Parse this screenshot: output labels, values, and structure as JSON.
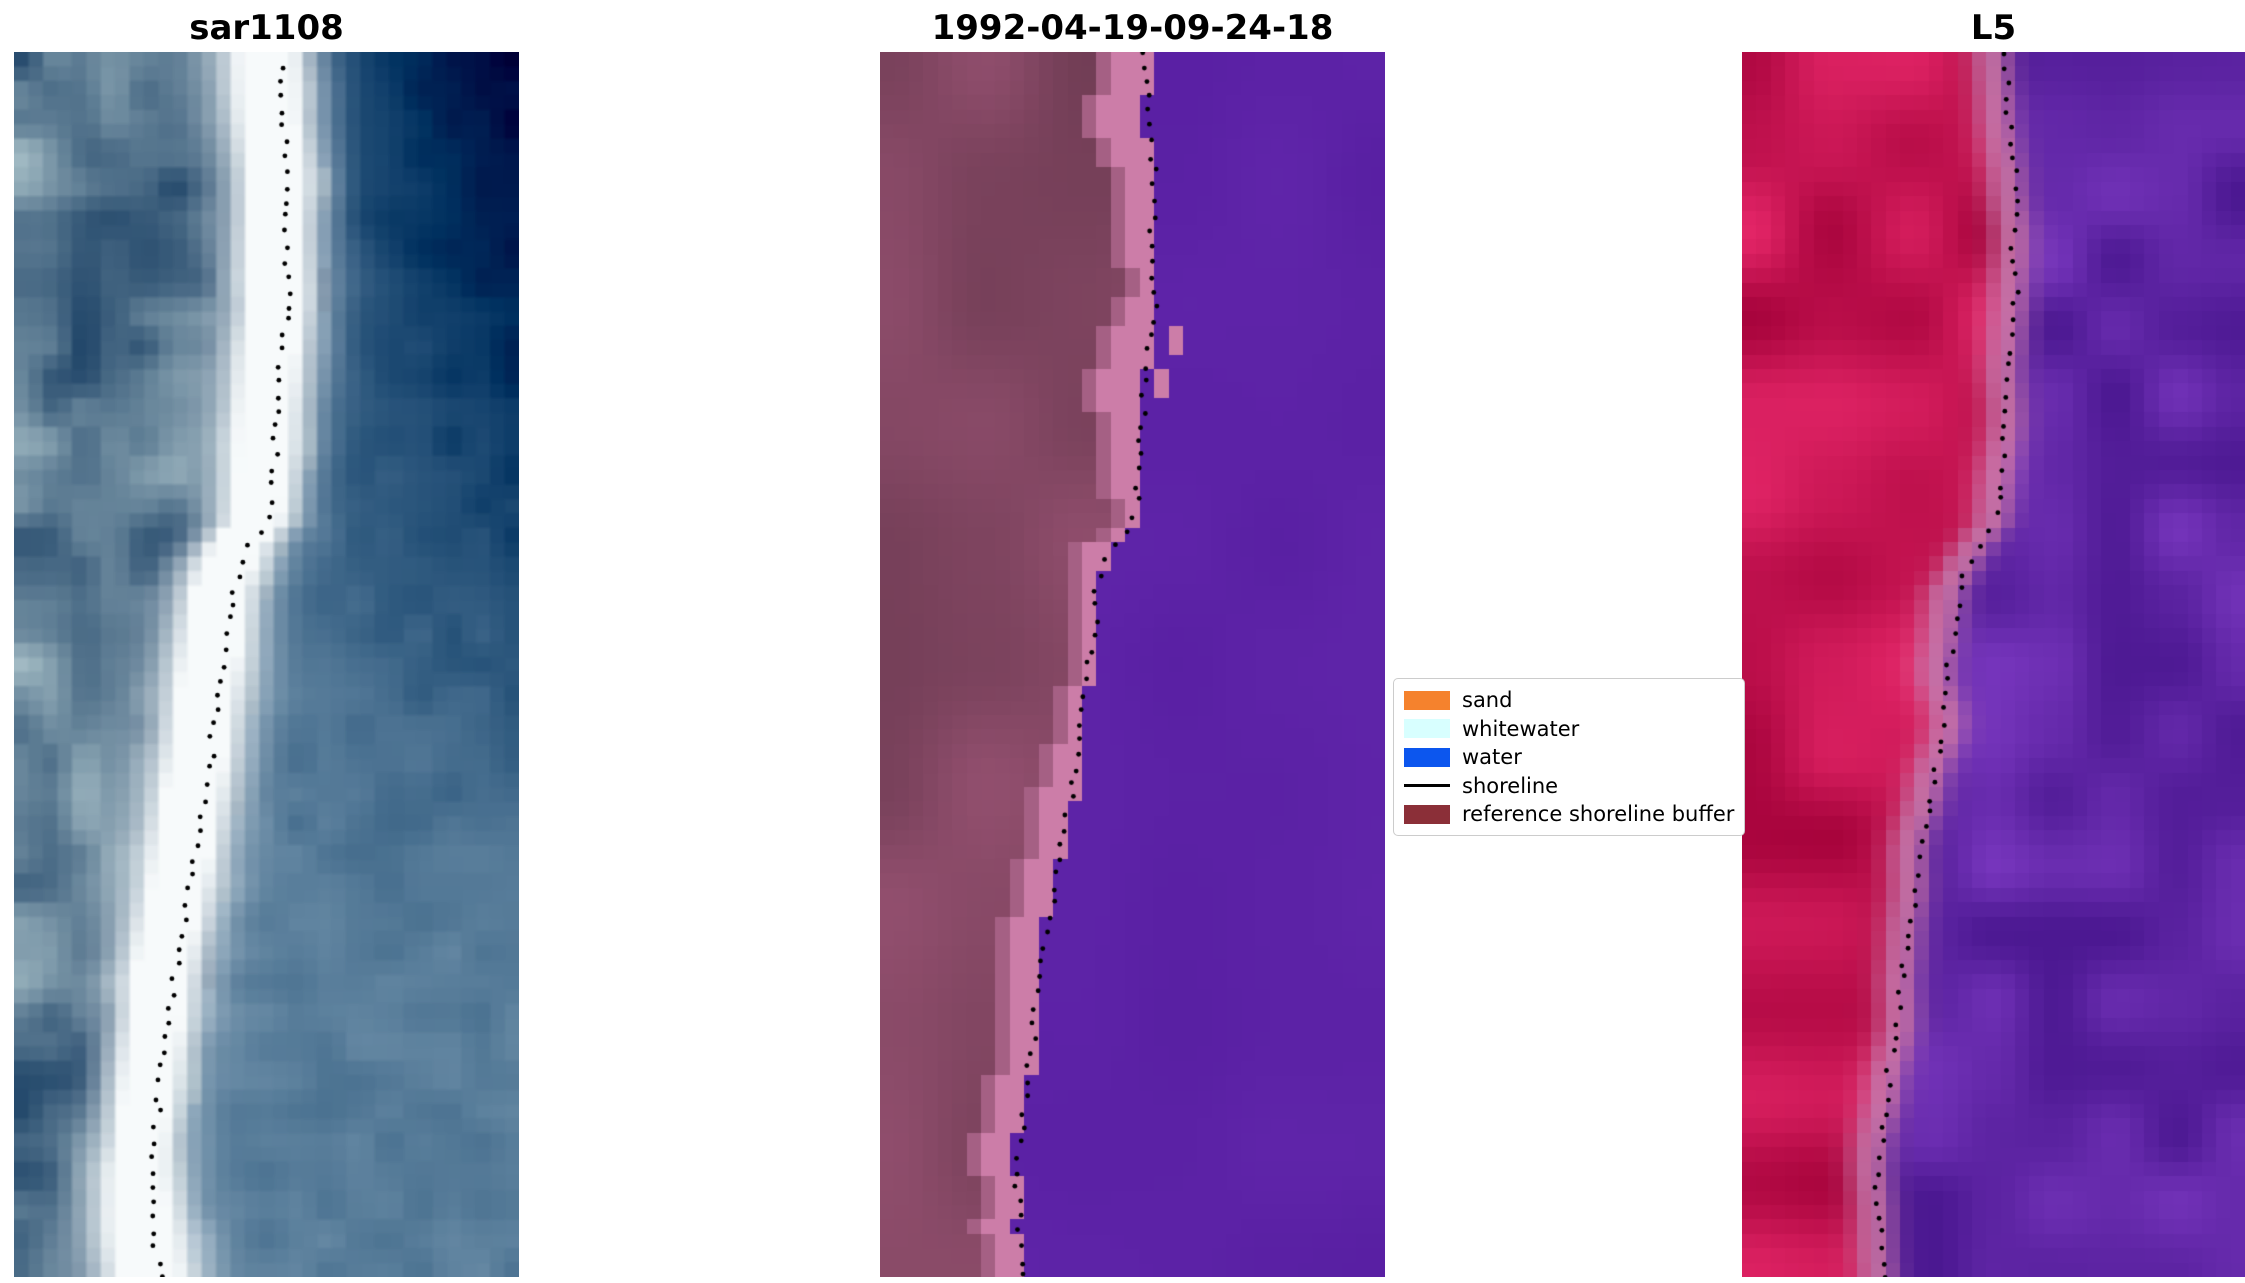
{
  "figure": {
    "background": "#ffffff"
  },
  "chart_data": {
    "type": "heatmap",
    "description": "Three-panel shoreline detection figure: SAR image, classified image, and L5 optical image, each overlaid with a dotted detected shoreline",
    "panels": [
      {
        "title": "sar1108",
        "kind": "sar-rgb-image"
      },
      {
        "title": "1992-04-19-09-24-18",
        "kind": "classified-image"
      },
      {
        "title": "L5",
        "kind": "satellite-false-color-image"
      }
    ],
    "legend": {
      "position": "center-right",
      "items": [
        {
          "label": "sand",
          "color": "#f5822d",
          "marker": "patch"
        },
        {
          "label": "whitewater",
          "color": "#d8ffff",
          "marker": "patch"
        },
        {
          "label": "water",
          "color": "#0c56ee",
          "marker": "patch"
        },
        {
          "label": "shoreline",
          "color": "#000000",
          "marker": "line"
        },
        {
          "label": "reference shoreline buffer",
          "color": "#8b2f38",
          "marker": "patch"
        }
      ]
    },
    "shoreline_path": [
      [
        0.0,
        0.525
      ],
      [
        0.05,
        0.53
      ],
      [
        0.1,
        0.545
      ],
      [
        0.15,
        0.54
      ],
      [
        0.2,
        0.545
      ],
      [
        0.25,
        0.53
      ],
      [
        0.3,
        0.52
      ],
      [
        0.34,
        0.515
      ],
      [
        0.38,
        0.505
      ],
      [
        0.41,
        0.455
      ],
      [
        0.44,
        0.43
      ],
      [
        0.48,
        0.42
      ],
      [
        0.52,
        0.405
      ],
      [
        0.56,
        0.395
      ],
      [
        0.6,
        0.38
      ],
      [
        0.64,
        0.365
      ],
      [
        0.68,
        0.35
      ],
      [
        0.72,
        0.33
      ],
      [
        0.76,
        0.315
      ],
      [
        0.8,
        0.305
      ],
      [
        0.84,
        0.29
      ],
      [
        0.88,
        0.28
      ],
      [
        0.92,
        0.27
      ],
      [
        0.96,
        0.275
      ],
      [
        1.0,
        0.29
      ]
    ],
    "class_pink_specks": [
      [
        0.225,
        1
      ],
      [
        0.265,
        1
      ],
      [
        0.575,
        0
      ],
      [
        0.6,
        0
      ]
    ],
    "colors": {
      "shoreline": "#000000",
      "sar_base": "#5e7d94",
      "sar_band": "#f7fafb",
      "class_sand_buffer": "#7e445f",
      "class_whitewater_buffer": "#cc7da8",
      "class_water_buffer": "#5c22a6",
      "l5_land": "#c31350",
      "l5_water": "#6026a6",
      "l5_transition": "#d387b0"
    }
  }
}
